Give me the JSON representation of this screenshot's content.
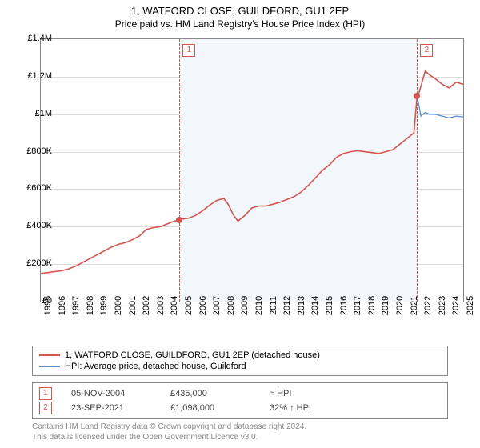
{
  "title_line1": "1, WATFORD CLOSE, GUILDFORD, GU1 2EP",
  "title_line2": "Price paid vs. HM Land Registry's House Price Index (HPI)",
  "chart": {
    "background_color": "#ffffff",
    "shaded_color": "#f2f7fb",
    "grid_color": "#dcdcdc",
    "border_color": "#888888",
    "x_years": [
      1995,
      1996,
      1997,
      1998,
      1999,
      2000,
      2001,
      2002,
      2003,
      2004,
      2005,
      2006,
      2007,
      2008,
      2009,
      2010,
      2011,
      2012,
      2013,
      2014,
      2015,
      2016,
      2017,
      2018,
      2019,
      2020,
      2021,
      2022,
      2023,
      2024,
      2025
    ],
    "x_min": 1995,
    "x_max": 2025,
    "y_ticks": [
      {
        "v": 0,
        "label": "£0"
      },
      {
        "v": 200000,
        "label": "£200K"
      },
      {
        "v": 400000,
        "label": "£400K"
      },
      {
        "v": 600000,
        "label": "£600K"
      },
      {
        "v": 800000,
        "label": "£800K"
      },
      {
        "v": 1000000,
        "label": "£1M"
      },
      {
        "v": 1200000,
        "label": "£1.2M"
      },
      {
        "v": 1400000,
        "label": "£1.4M"
      }
    ],
    "y_min": 0,
    "y_max": 1400000,
    "shaded_start": 2004.85,
    "shaded_end": 2021.73,
    "series": [
      {
        "name": "property",
        "color": "#d9534f",
        "width": 1.6,
        "points": [
          [
            1995,
            150000
          ],
          [
            1995.5,
            155000
          ],
          [
            1996,
            160000
          ],
          [
            1996.5,
            165000
          ],
          [
            1997,
            175000
          ],
          [
            1997.5,
            190000
          ],
          [
            1998,
            210000
          ],
          [
            1998.5,
            230000
          ],
          [
            1999,
            250000
          ],
          [
            1999.5,
            270000
          ],
          [
            2000,
            290000
          ],
          [
            2000.5,
            305000
          ],
          [
            2001,
            315000
          ],
          [
            2001.5,
            330000
          ],
          [
            2002,
            350000
          ],
          [
            2002.5,
            385000
          ],
          [
            2003,
            395000
          ],
          [
            2003.5,
            400000
          ],
          [
            2004,
            415000
          ],
          [
            2004.5,
            430000
          ],
          [
            2004.85,
            435000
          ],
          [
            2005,
            440000
          ],
          [
            2005.5,
            445000
          ],
          [
            2006,
            460000
          ],
          [
            2006.5,
            485000
          ],
          [
            2007,
            515000
          ],
          [
            2007.5,
            540000
          ],
          [
            2008,
            550000
          ],
          [
            2008.3,
            520000
          ],
          [
            2008.7,
            460000
          ],
          [
            2009,
            430000
          ],
          [
            2009.5,
            460000
          ],
          [
            2010,
            500000
          ],
          [
            2010.5,
            510000
          ],
          [
            2011,
            510000
          ],
          [
            2011.5,
            520000
          ],
          [
            2012,
            530000
          ],
          [
            2012.5,
            545000
          ],
          [
            2013,
            560000
          ],
          [
            2013.5,
            585000
          ],
          [
            2014,
            620000
          ],
          [
            2014.5,
            660000
          ],
          [
            2015,
            700000
          ],
          [
            2015.5,
            730000
          ],
          [
            2016,
            770000
          ],
          [
            2016.5,
            790000
          ],
          [
            2017,
            800000
          ],
          [
            2017.5,
            805000
          ],
          [
            2018,
            800000
          ],
          [
            2018.5,
            795000
          ],
          [
            2019,
            790000
          ],
          [
            2019.5,
            800000
          ],
          [
            2020,
            810000
          ],
          [
            2020.5,
            840000
          ],
          [
            2021,
            870000
          ],
          [
            2021.5,
            900000
          ],
          [
            2021.73,
            1098000
          ],
          [
            2021.8,
            1100000
          ],
          [
            2022,
            1150000
          ],
          [
            2022.3,
            1230000
          ],
          [
            2022.6,
            1210000
          ],
          [
            2023,
            1190000
          ],
          [
            2023.5,
            1160000
          ],
          [
            2024,
            1140000
          ],
          [
            2024.5,
            1170000
          ],
          [
            2025,
            1160000
          ]
        ]
      },
      {
        "name": "hpi",
        "color": "#5b8fd6",
        "width": 1.3,
        "points": [
          [
            2021.73,
            1098000
          ],
          [
            2022,
            990000
          ],
          [
            2022.3,
            1010000
          ],
          [
            2022.6,
            1000000
          ],
          [
            2023,
            1000000
          ],
          [
            2023.5,
            990000
          ],
          [
            2024,
            980000
          ],
          [
            2024.5,
            990000
          ],
          [
            2025,
            985000
          ]
        ]
      }
    ],
    "sale_markers": [
      {
        "n": "1",
        "x": 2004.85,
        "y": 435000
      },
      {
        "n": "2",
        "x": 2021.73,
        "y": 1098000
      }
    ]
  },
  "legend": [
    {
      "color": "#d9534f",
      "label": "1, WATFORD CLOSE, GUILDFORD, GU1 2EP (detached house)"
    },
    {
      "color": "#5b8fd6",
      "label": "HPI: Average price, detached house, Guildford"
    }
  ],
  "sales_table": [
    {
      "n": "1",
      "date": "05-NOV-2004",
      "price": "£435,000",
      "diff": "≈ HPI"
    },
    {
      "n": "2",
      "date": "23-SEP-2021",
      "price": "£1,098,000",
      "diff": "32% ↑ HPI"
    }
  ],
  "footer_line1": "Contains HM Land Registry data © Crown copyright and database right 2024.",
  "footer_line2": "This data is licensed under the Open Government Licence v3.0."
}
